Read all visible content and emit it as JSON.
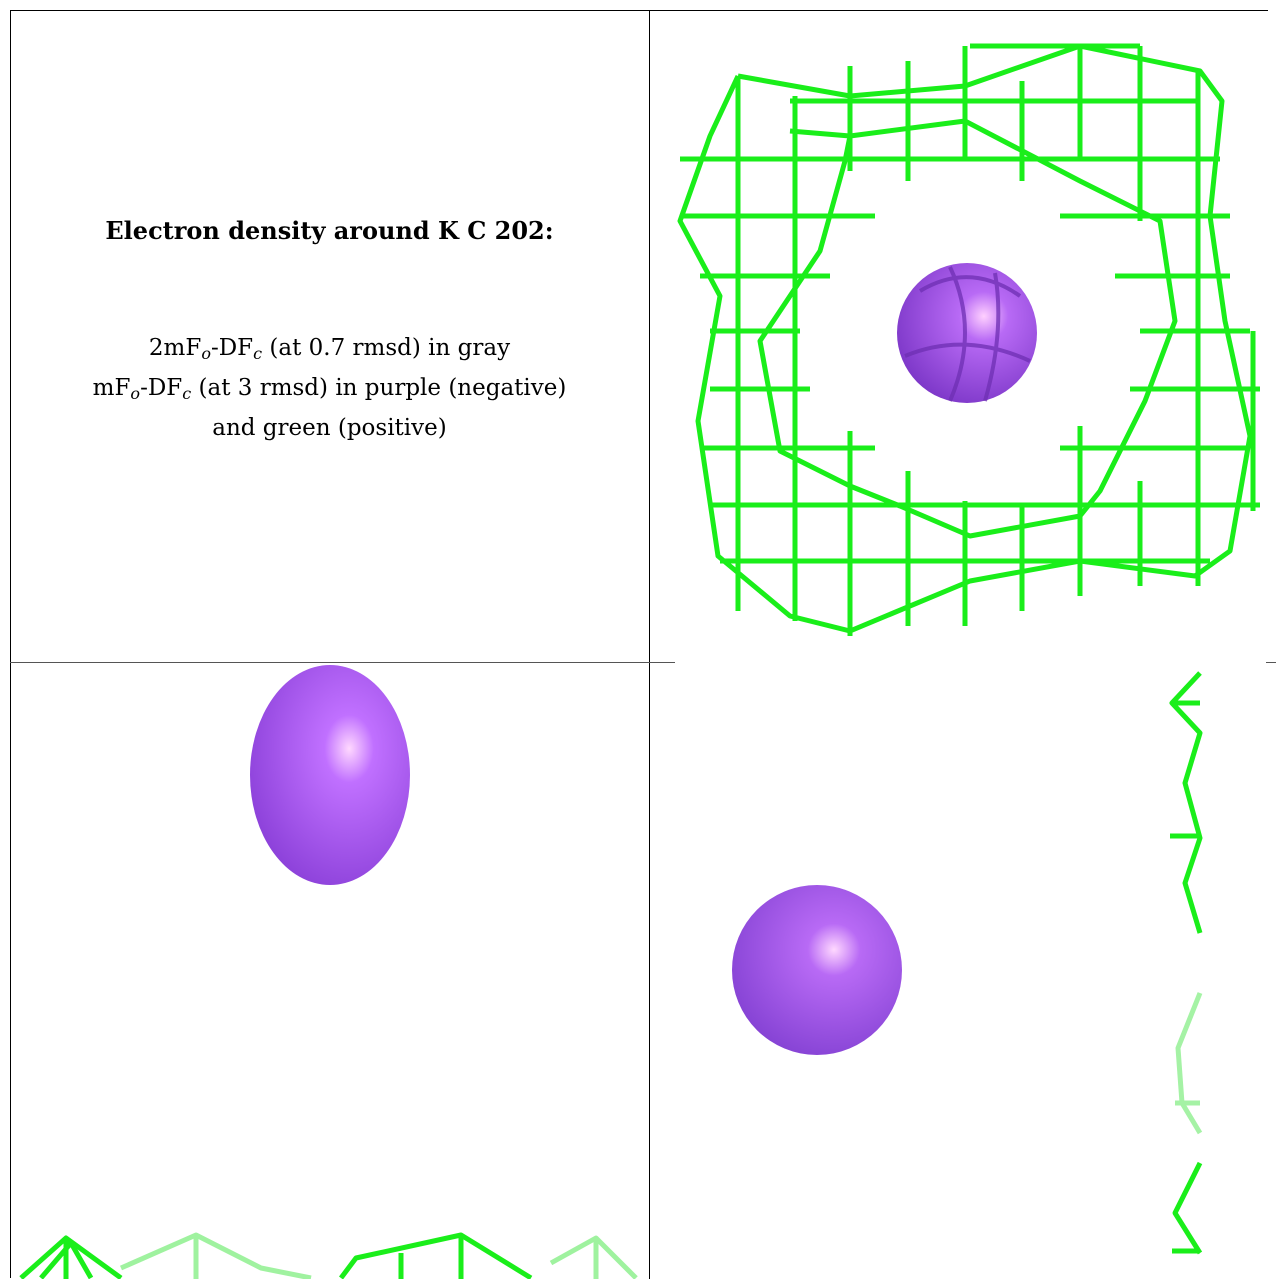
{
  "caption": {
    "title": "Electron density around K C 202:",
    "line1": {
      "pre": "2mF",
      "sub1": "o",
      "mid": "-DF",
      "sub2": "c",
      "post": " (at 0.7 rmsd) in gray"
    },
    "line2": {
      "pre": "mF",
      "sub1": "o",
      "mid": "-DF",
      "sub2": "c",
      "post": " (at 3 rmsd) in purple (negative)"
    },
    "line3": "and green (positive)"
  },
  "colors": {
    "mesh_positive": "#1aee1a",
    "ion_purple": "#9a4fe6",
    "ion_highlight": "#ffd0ff",
    "border": "#000000"
  }
}
